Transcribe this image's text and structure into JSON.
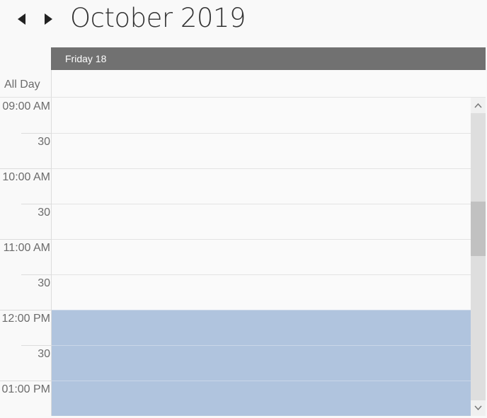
{
  "header": {
    "title": "October 2019",
    "prev_icon": "triangle-left-icon",
    "next_icon": "triangle-right-icon"
  },
  "day_header": {
    "label": "Friday 18"
  },
  "all_day": {
    "label": "All Day"
  },
  "time_slots": [
    {
      "label": "09:00 AM",
      "kind": "hour",
      "selected": false
    },
    {
      "label": "30",
      "kind": "half",
      "selected": false
    },
    {
      "label": "10:00 AM",
      "kind": "hour",
      "selected": false
    },
    {
      "label": "30",
      "kind": "half",
      "selected": false
    },
    {
      "label": "11:00 AM",
      "kind": "hour",
      "selected": false
    },
    {
      "label": "30",
      "kind": "half",
      "selected": false
    },
    {
      "label": "12:00 PM",
      "kind": "hour",
      "selected": true
    },
    {
      "label": "30",
      "kind": "half",
      "selected": true
    },
    {
      "label": "01:00 PM",
      "kind": "hour",
      "selected": true
    }
  ],
  "scrollbar": {
    "position": 0.38,
    "visible_fraction": 0.19,
    "up_icon": "chevron-up-icon",
    "down_icon": "chevron-down-icon"
  },
  "colors": {
    "selected_slot": "#b0c4de",
    "day_header": "#717171"
  }
}
